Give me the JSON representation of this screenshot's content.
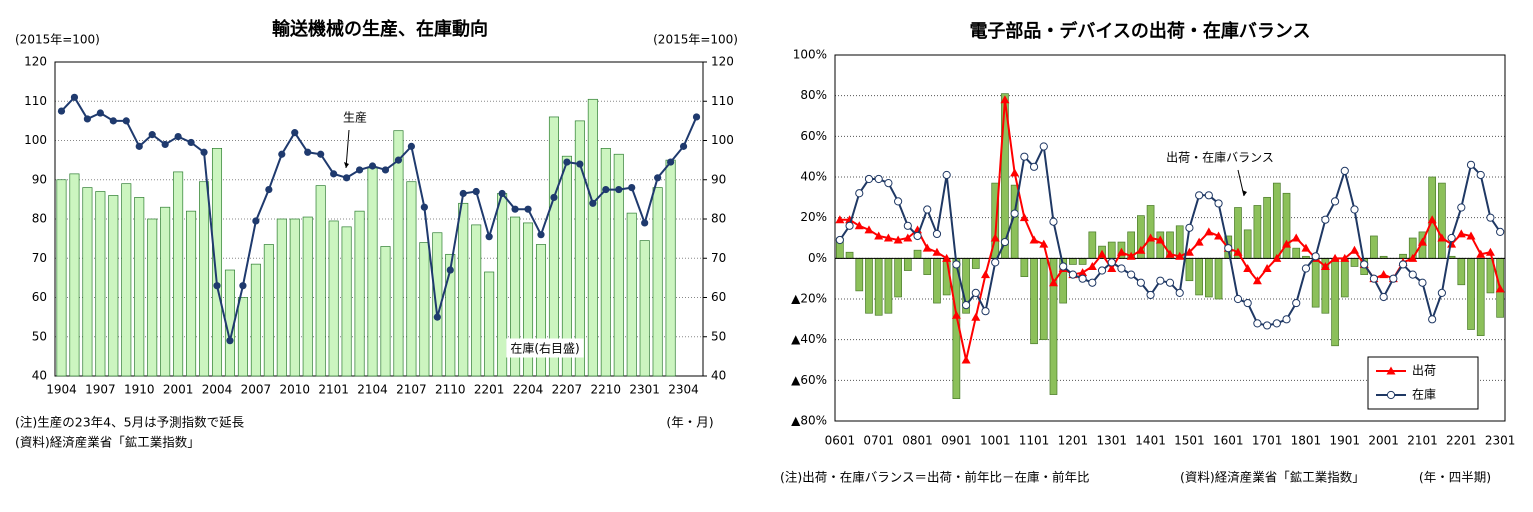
{
  "chart_data": [
    {
      "type": "combo",
      "title": "輸送機械の生産、在庫動向",
      "ylabel": "(2015年=100)",
      "y2label": "(2015年=100)",
      "xlabel": "(年・月)",
      "notes": [
        "(注)生産の23年4、5月は予測指数で延長",
        "(資料)経済産業省「鉱工業指数」"
      ],
      "categories": [
        "1904",
        null,
        null,
        "1907",
        null,
        null,
        "1910",
        null,
        null,
        "2001",
        null,
        null,
        "2004",
        null,
        null,
        "2007",
        null,
        null,
        "2010",
        null,
        null,
        "2101",
        null,
        null,
        "2104",
        null,
        null,
        "2107",
        null,
        null,
        "2110",
        null,
        null,
        "2201",
        null,
        null,
        "2204",
        null,
        null,
        "2207",
        null,
        null,
        "2210",
        null,
        null,
        "2301",
        null,
        null,
        "2304",
        null
      ],
      "ylim": [
        40,
        120
      ],
      "yticks": [
        40,
        50,
        60,
        70,
        80,
        90,
        100,
        110,
        120
      ],
      "y2lim": [
        40,
        120
      ],
      "y2ticks": [
        40,
        50,
        60,
        70,
        80,
        90,
        100,
        110,
        120
      ],
      "grid": true,
      "series": [
        {
          "name": "生産",
          "type": "line",
          "color": "#1f3a6e",
          "axis": "y",
          "values": [
            107.5,
            111,
            105.5,
            107,
            105,
            105,
            98.5,
            101.5,
            99,
            101,
            99.5,
            97,
            63,
            49,
            63,
            79.5,
            87.5,
            96.5,
            102,
            97,
            96.5,
            91.5,
            90.5,
            92.5,
            93.5,
            92.5,
            95,
            98.5,
            83,
            55,
            67,
            86.5,
            87,
            75.5,
            86.5,
            82.5,
            82.5,
            76,
            85.5,
            94.5,
            94,
            84,
            87.5,
            87.5,
            88,
            79,
            90.5,
            94.5,
            98.5,
            106
          ]
        },
        {
          "name": "在庫(右目盛)",
          "type": "bar",
          "color": "#ccf5c0",
          "axis": "y2",
          "values": [
            90,
            91.5,
            88,
            87,
            86,
            89,
            85.5,
            80,
            83,
            92,
            82,
            89.5,
            98,
            67,
            60,
            68.5,
            73.5,
            80,
            80,
            80.5,
            88.5,
            79.5,
            78,
            82,
            93,
            73,
            102.5,
            89.5,
            74,
            76.5,
            71,
            84,
            78.5,
            66.5,
            86.5,
            80.5,
            79,
            73.5,
            106,
            96,
            105,
            110.5,
            98,
            96.5,
            81.5,
            74.5,
            88,
            95,
            null,
            null
          ]
        }
      ]
    },
    {
      "type": "combo",
      "title": "電子部品・デバイスの出荷・在庫バランス",
      "xlabel": "(年・四半期)",
      "notes": [
        "(注)出荷・在庫バランス＝出荷・前年比－在庫・前年比",
        "(資料)経済産業省「鉱工業指数」"
      ],
      "categories": [
        "0601",
        null,
        null,
        null,
        "0701",
        null,
        null,
        null,
        "0801",
        null,
        null,
        null,
        "0901",
        null,
        null,
        null,
        "1001",
        null,
        null,
        null,
        "1101",
        null,
        null,
        null,
        "1201",
        null,
        null,
        null,
        "1301",
        null,
        null,
        null,
        "1401",
        null,
        null,
        null,
        "1501",
        null,
        null,
        null,
        "1601",
        null,
        null,
        null,
        "1701",
        null,
        null,
        null,
        "1801",
        null,
        null,
        null,
        "1901",
        null,
        null,
        null,
        "2001",
        null,
        null,
        null,
        "2101",
        null,
        null,
        null,
        "2201",
        null,
        null,
        null,
        "2301"
      ],
      "ylim": [
        -80,
        100
      ],
      "yticks": [
        {
          "value": -80,
          "label": "▲80%"
        },
        {
          "value": -60,
          "label": "▲60%"
        },
        {
          "value": -40,
          "label": "▲40%"
        },
        {
          "value": -20,
          "label": "▲20%"
        },
        {
          "value": 0,
          "label": "0%"
        },
        {
          "value": 20,
          "label": "20%"
        },
        {
          "value": 40,
          "label": "40%"
        },
        {
          "value": 60,
          "label": "60%"
        },
        {
          "value": 80,
          "label": "80%"
        },
        {
          "value": 100,
          "label": "100%"
        }
      ],
      "grid": true,
      "legend": "bottom-right",
      "series": [
        {
          "name": "出荷・在庫バランス",
          "type": "bar",
          "color": "#8cc05a",
          "axis": "y",
          "values": [
            10,
            3,
            -16,
            -27,
            -28,
            -27,
            -19,
            -6,
            4,
            -8,
            -22,
            -18,
            -69,
            -27,
            -5,
            0,
            37,
            81,
            36,
            -9,
            -42,
            -40,
            -67,
            -22,
            -3,
            -3,
            13,
            6,
            8,
            8,
            13,
            21,
            26,
            13,
            13,
            16,
            -11,
            -18,
            -19,
            -20,
            11,
            25,
            14,
            26,
            30,
            37,
            32,
            5,
            1,
            -24,
            -27,
            -43,
            -19,
            -4,
            -8,
            11,
            1,
            0,
            2,
            10,
            13,
            40,
            37,
            1,
            -13,
            -35,
            -38,
            -17,
            -29
          ]
        },
        {
          "name": "出荷",
          "type": "line",
          "marker": "triangle",
          "color": "#ff0000",
          "axis": "y",
          "values": [
            19,
            19,
            16,
            14,
            11,
            10,
            9,
            10,
            14,
            5,
            3,
            0,
            -28,
            -50,
            -29,
            -8,
            10,
            78,
            42,
            20,
            9,
            7,
            -12,
            -5,
            -8,
            -7,
            -4,
            2,
            -5,
            3,
            1,
            4,
            10,
            9,
            2,
            1,
            3,
            8,
            13,
            11,
            5,
            3,
            -5,
            -11,
            -5,
            0,
            7,
            10,
            5,
            0,
            -4,
            0,
            0,
            4,
            -3,
            -10,
            -8,
            -10,
            -2,
            0,
            8,
            19,
            10,
            7,
            12,
            11,
            2,
            3,
            -15
          ]
        },
        {
          "name": "在庫",
          "type": "line",
          "marker": "circle",
          "color": "#1f3864",
          "axis": "y",
          "values": [
            9,
            16,
            32,
            39,
            39,
            37,
            28,
            16,
            11,
            24,
            12,
            41,
            -3,
            -23,
            -17,
            -26,
            -2,
            8,
            22,
            50,
            45,
            55,
            18,
            -4,
            -8,
            -10,
            -12,
            -6,
            -2,
            -5,
            -8,
            -12,
            -18,
            -11,
            -12,
            -17,
            15,
            31,
            31,
            27,
            5,
            -20,
            -22,
            -32,
            -33,
            -32,
            -30,
            -22,
            -5,
            1,
            19,
            28,
            43,
            24,
            -3,
            -10,
            -19,
            -10,
            -3,
            -8,
            -12,
            -30,
            -17,
            10,
            25,
            46,
            41,
            20,
            13
          ]
        }
      ]
    }
  ]
}
